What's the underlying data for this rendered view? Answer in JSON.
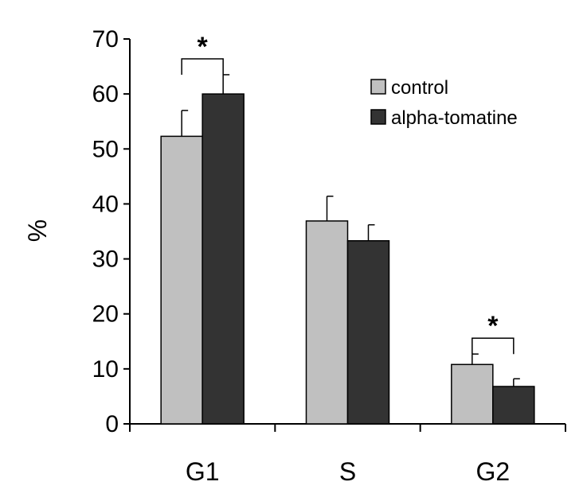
{
  "chart_data": {
    "type": "bar",
    "title": "",
    "xlabel": "",
    "ylabel": "%",
    "ylim": [
      0,
      70
    ],
    "yticks": [
      "0",
      "10",
      "20",
      "30",
      "40",
      "50",
      "60",
      "70"
    ],
    "categories": [
      "G1",
      "S",
      "G2"
    ],
    "series": [
      {
        "name": "control",
        "values": [
          52.3,
          36.9,
          10.8
        ],
        "errors": [
          4.7,
          4.5,
          1.9
        ],
        "color": "#c0c0c0"
      },
      {
        "name": "alpha-tomatine",
        "values": [
          60.0,
          33.3,
          6.8
        ],
        "errors": [
          3.5,
          2.9,
          1.4
        ],
        "color": "#333333"
      }
    ],
    "significance": [
      {
        "category": "G1",
        "label": "*"
      },
      {
        "category": "G2",
        "label": "*"
      }
    ],
    "legend_position": "top-right",
    "grid": false
  }
}
